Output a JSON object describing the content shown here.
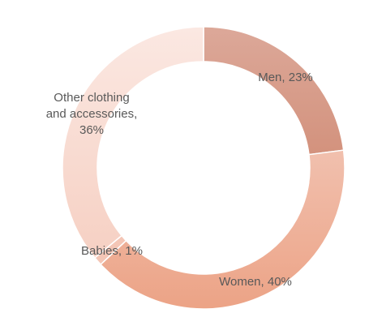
{
  "chart_data": {
    "type": "pie",
    "variant": "doughnut",
    "title": "",
    "start": "top",
    "direction": "clockwise",
    "slices": [
      {
        "name": "Men",
        "value": 23,
        "label_lines": [
          "Men, 23%"
        ],
        "color_top": "#dca899",
        "color_bottom": "#d3927d"
      },
      {
        "name": "Women",
        "value": 40,
        "label_lines": [
          "Women, 40%"
        ],
        "color_top": "#f1c0ae",
        "color_bottom": "#eca386"
      },
      {
        "name": "Babies",
        "value": 1,
        "label_lines": [
          "Babies, 1%"
        ],
        "color_top": "#f4c6b6",
        "color_bottom": "#f4c6b6"
      },
      {
        "name": "Other clothing and accessories",
        "value": 36,
        "label_lines": [
          "Other clothing",
          "and accessories,",
          "36%"
        ],
        "color_top": "#fbe8e2",
        "color_bottom": "#f6d0c3"
      }
    ],
    "separator_color": "#ffffff"
  }
}
